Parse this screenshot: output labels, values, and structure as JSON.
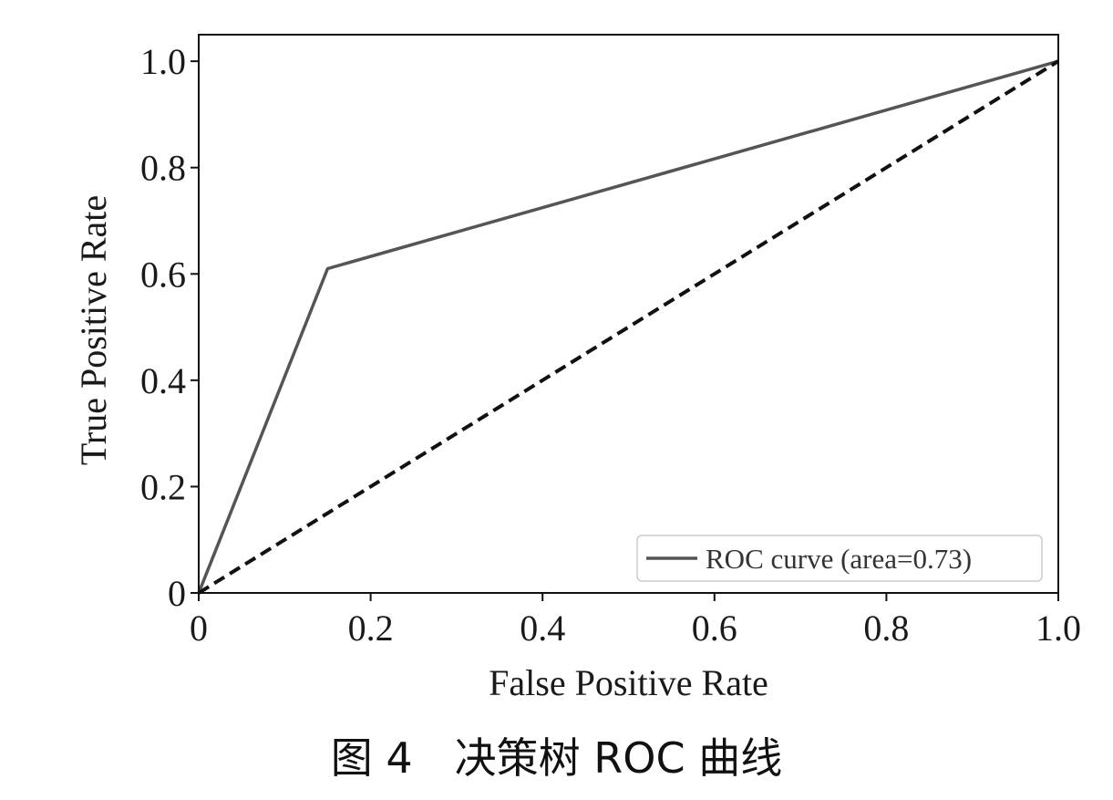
{
  "caption": "图 4　决策树 ROC 曲线",
  "chart_data": {
    "type": "line",
    "xlabel": "False Positive Rate",
    "ylabel": "True Positive Rate",
    "xlim": [
      0,
      1
    ],
    "ylim": [
      0,
      1.05
    ],
    "x_ticks": [
      0,
      0.2,
      0.4,
      0.6,
      0.8,
      1.0
    ],
    "x_tick_labels": [
      "0",
      "0.2",
      "0.4",
      "0.6",
      "0.8",
      "1.0"
    ],
    "y_ticks": [
      0,
      0.2,
      0.4,
      0.6,
      0.8,
      1.0
    ],
    "y_tick_labels": [
      "0",
      "0.2",
      "0.4",
      "0.6",
      "0.8",
      "1.0"
    ],
    "grid": false,
    "legend_position": "bottom-right",
    "series": [
      {
        "name": "ROC curve (area=0.73)",
        "style": "solid",
        "color": "#555555",
        "x": [
          0,
          0.15,
          1.0
        ],
        "y": [
          0,
          0.61,
          1.0
        ]
      },
      {
        "style": "dashed",
        "color": "#111111",
        "x": [
          0,
          1.0
        ],
        "y": [
          0,
          1.0
        ]
      }
    ]
  }
}
